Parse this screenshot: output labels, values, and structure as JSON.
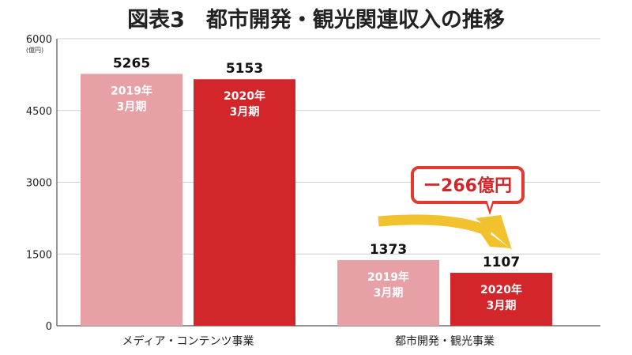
{
  "chart_data": {
    "type": "bar",
    "title": "図表3　都市開発・観光関連収入の推移",
    "ylabel": "(億円)",
    "ylim": [
      0,
      6000
    ],
    "yticks": [
      0,
      1500,
      3000,
      4500,
      6000
    ],
    "grid": true,
    "categories": [
      "メディア・コンテンツ事業",
      "都市開発・観光事業"
    ],
    "series": [
      {
        "name": "2019年\n3月期",
        "color": "#e8a0a7",
        "values": [
          5265,
          1373
        ]
      },
      {
        "name": "2020年\n3月期",
        "color": "#d3262b",
        "values": [
          5153,
          1107
        ]
      }
    ],
    "annotation": {
      "text": "ー266億円",
      "box_border": "#e23a2e",
      "text_color": "#d3262b",
      "arrow_color": "#f2c12e"
    }
  }
}
